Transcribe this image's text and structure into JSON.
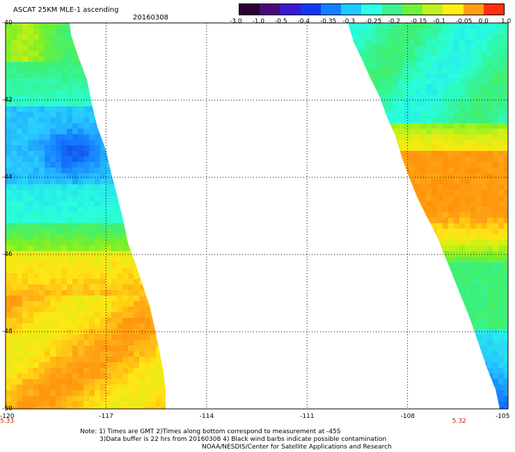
{
  "header": {
    "title": "ASCAT 25KM MLE-1 ascending",
    "date": "20160308"
  },
  "colorbar": {
    "labels": [
      "-3.0",
      "-1.0",
      "-0.5",
      "-0.4",
      "-0.35",
      "-0.3",
      "-0.25",
      "-0.2",
      "-0.15",
      "-0.1",
      "-0.05",
      "0.0",
      "1.0"
    ],
    "colors": [
      "#2a0032",
      "#4a0a7a",
      "#3a1ad0",
      "#1038f0",
      "#1080ff",
      "#20c8ff",
      "#30ffe8",
      "#40f090",
      "#70f040",
      "#c0f020",
      "#ffee10",
      "#ffa010",
      "#ff3010"
    ]
  },
  "chart_data": {
    "type": "heatmap",
    "title": "ASCAT 25KM MLE-1 ascending",
    "subtitle": "20160308",
    "x_ticks": [
      "-120",
      "-117",
      "-114",
      "-111",
      "-108",
      "-105"
    ],
    "y_ticks": [
      "-40",
      "-42",
      "-44",
      "-46",
      "-48",
      "-50"
    ],
    "xlim": [
      -120,
      -105
    ],
    "ylim": [
      -50,
      -40
    ],
    "grid": true,
    "colorbar_ticks": [
      "-3.0",
      "-1.0",
      "-0.5",
      "-0.4",
      "-0.35",
      "-0.3",
      "-0.25",
      "-0.2",
      "-0.15",
      "-0.1",
      "-0.05",
      "0.0",
      "1.0"
    ],
    "swath_times": [
      {
        "x": -120,
        "label": "5.33"
      },
      {
        "x": -106.5,
        "label": "5.32"
      }
    ]
  },
  "notes": [
    "Note: 1) Times are GMT 2)Times along bottom correspond to measurement at -45S",
    "3)Data buffer is 22 hrs from 20160308 4) Black wind barbs indicate possible contamination",
    "NOAA/NESDIS/Center for Satellite Applications and Research"
  ]
}
